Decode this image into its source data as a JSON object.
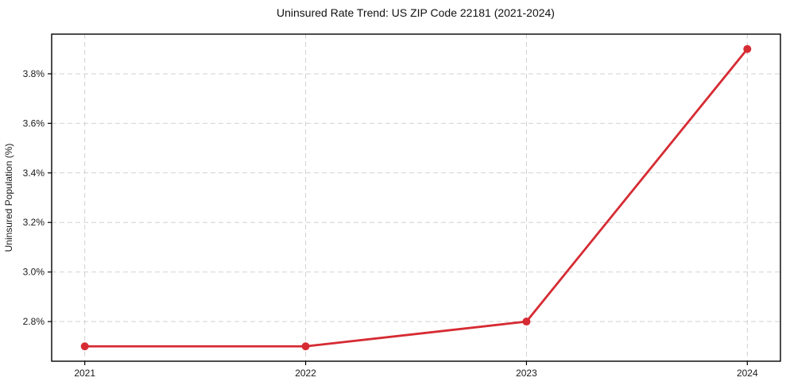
{
  "chart_data": {
    "type": "line",
    "title": "Uninsured Rate Trend: US ZIP Code 22181 (2021-2024)",
    "xlabel": "",
    "ylabel": "Uninsured Population (%)",
    "x": [
      2021,
      2022,
      2023,
      2024
    ],
    "x_tick_labels": [
      "2021",
      "2022",
      "2023",
      "2024"
    ],
    "series": [
      {
        "name": "uninsured-rate",
        "values": [
          2.7,
          2.7,
          2.8,
          3.9
        ],
        "color": "#d62b33",
        "line_width": 2.8,
        "marker": "circle",
        "marker_size": 5
      }
    ],
    "y_ticks": [
      2.8,
      3.0,
      3.2,
      3.4,
      3.6,
      3.8
    ],
    "y_tick_labels": [
      "2.8%",
      "3.0%",
      "3.2%",
      "3.4%",
      "3.6%",
      "3.8%"
    ],
    "xlim": [
      2020.85,
      2024.15
    ],
    "ylim": [
      2.64,
      3.96
    ],
    "grid": "both",
    "grid_style": "dashed",
    "grid_color": "#d2d2d2",
    "axes_border_color": "#000000",
    "tick_color": "#000000",
    "background": "#ffffff",
    "legend_position": "none"
  }
}
